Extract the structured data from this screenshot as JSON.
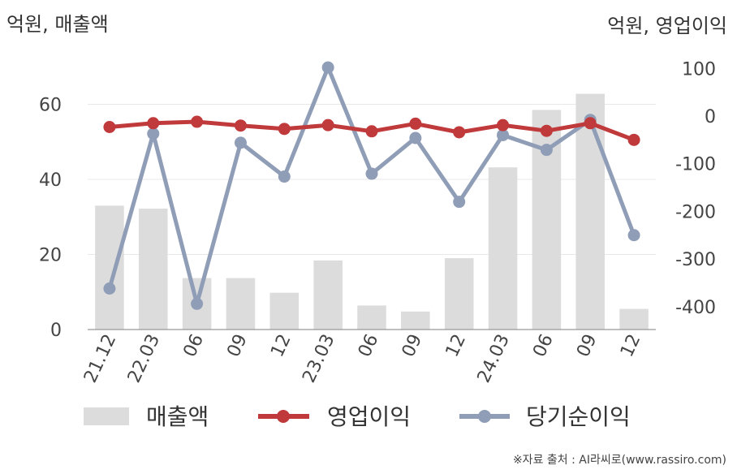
{
  "chart_data": {
    "type": "bar+line",
    "categories": [
      "21.12",
      "22.03",
      "06",
      "09",
      "12",
      "23.03",
      "06",
      "09",
      "12",
      "24.03",
      "06",
      "09",
      "12"
    ],
    "left_axis": {
      "label": "억원, 매출액",
      "ticks": [
        "0",
        "20",
        "40",
        "60"
      ],
      "range": [
        0,
        70
      ]
    },
    "right_axis": {
      "label": "억원, 영업이익",
      "ticks": [
        "100",
        "0",
        "-100",
        "-200",
        "-300",
        "-400"
      ],
      "range": [
        -450,
        100
      ]
    },
    "series": [
      {
        "name": "매출액",
        "kind": "bar",
        "axis": "left",
        "color": "#dcdcdc",
        "values": [
          33.0,
          32.2,
          13.7,
          13.7,
          9.8,
          18.4,
          6.4,
          4.8,
          19.0,
          43.2,
          58.5,
          62.8,
          5.5
        ]
      },
      {
        "name": "영업이익",
        "kind": "line",
        "axis": "right",
        "color": "#c0393b",
        "values": [
          -23,
          -15,
          -12,
          -20,
          -27,
          -19,
          -32,
          -16,
          -34,
          -19,
          -31,
          -15,
          -50
        ]
      },
      {
        "name": "당기순이익",
        "kind": "line",
        "axis": "right",
        "color": "#8f9db6",
        "values": [
          -362,
          -37,
          -394,
          -56,
          -127,
          102,
          -121,
          -46,
          -180,
          -40,
          -71,
          -8,
          -250
        ]
      }
    ],
    "grid": true,
    "legend_position": "bottom"
  },
  "footer": {
    "source": "※자료 출처 : AI라씨로(www.rassiro.com)"
  }
}
